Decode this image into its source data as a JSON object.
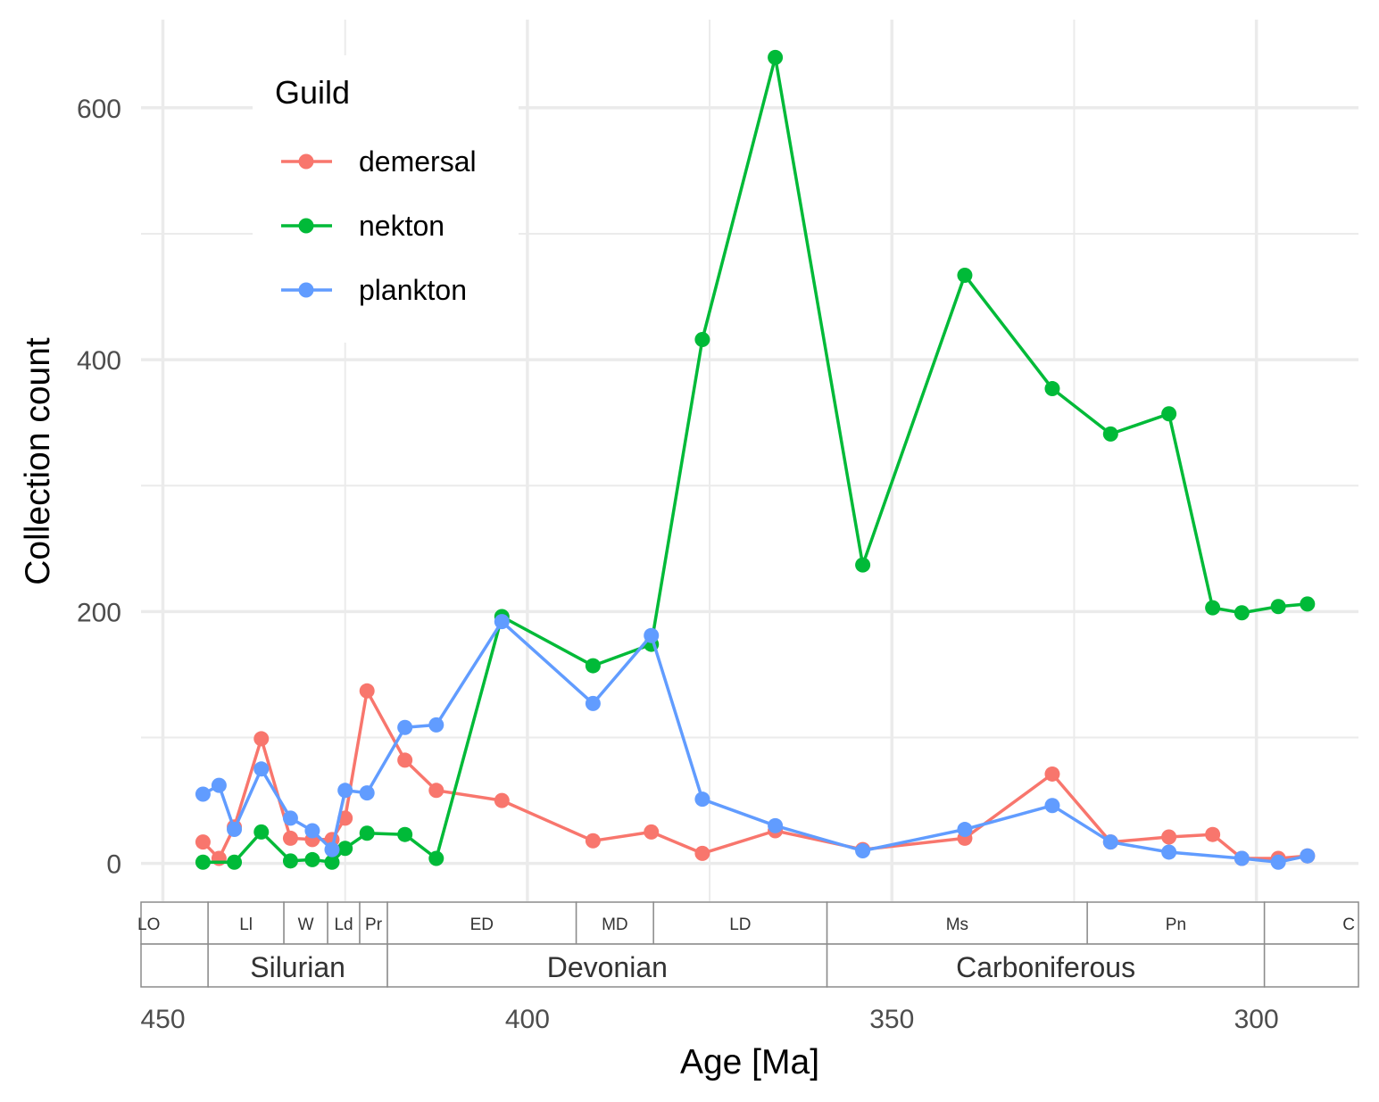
{
  "chart_data": {
    "type": "line",
    "xlabel": "Age [Ma]",
    "ylabel": "Collection count",
    "xlim": [
      453,
      286
    ],
    "ylim": [
      -30,
      670
    ],
    "x_reversed": true,
    "x_ticks": [
      450,
      400,
      350,
      300
    ],
    "y_ticks": [
      0,
      200,
      400,
      600
    ],
    "grid": true,
    "legend": {
      "title": "Guild",
      "placement": "top-left",
      "entries": [
        "demersal",
        "nekton",
        "plankton"
      ]
    },
    "colors": {
      "demersal": "#F8766D",
      "nekton": "#00BA38",
      "plankton": "#619CFF"
    },
    "series": [
      {
        "name": "demersal",
        "points": [
          [
            444.5,
            17
          ],
          [
            442.3,
            4
          ],
          [
            440.2,
            29
          ],
          [
            436.5,
            99
          ],
          [
            432.5,
            20
          ],
          [
            429.5,
            19
          ],
          [
            426.8,
            19
          ],
          [
            425.0,
            36
          ],
          [
            422.0,
            137
          ],
          [
            416.8,
            82
          ],
          [
            412.5,
            58
          ],
          [
            403.5,
            50
          ],
          [
            391,
            18
          ],
          [
            383,
            25
          ],
          [
            376,
            8
          ],
          [
            366,
            26
          ],
          [
            354,
            11
          ],
          [
            340,
            20
          ],
          [
            328,
            71
          ],
          [
            320,
            17
          ],
          [
            312,
            21
          ],
          [
            306,
            23
          ],
          [
            302,
            4
          ],
          [
            297,
            4
          ],
          [
            293,
            6
          ]
        ]
      },
      {
        "name": "nekton",
        "points": [
          [
            444.5,
            1
          ],
          [
            440.2,
            1
          ],
          [
            436.5,
            25
          ],
          [
            432.5,
            2
          ],
          [
            429.5,
            3
          ],
          [
            426.8,
            1
          ],
          [
            425.0,
            12
          ],
          [
            422.0,
            24
          ],
          [
            416.8,
            23
          ],
          [
            412.5,
            4
          ],
          [
            403.5,
            196
          ],
          [
            391,
            157
          ],
          [
            383,
            174
          ],
          [
            376,
            416
          ],
          [
            366,
            640
          ],
          [
            354,
            237
          ],
          [
            340,
            467
          ],
          [
            328,
            377
          ],
          [
            320,
            341
          ],
          [
            312,
            357
          ],
          [
            306,
            203
          ],
          [
            302,
            199
          ],
          [
            297,
            204
          ],
          [
            293,
            206
          ]
        ]
      },
      {
        "name": "plankton",
        "points": [
          [
            444.5,
            55
          ],
          [
            442.3,
            62
          ],
          [
            440.2,
            27
          ],
          [
            436.5,
            75
          ],
          [
            432.5,
            36
          ],
          [
            429.5,
            26
          ],
          [
            426.8,
            11
          ],
          [
            425.0,
            58
          ],
          [
            422.0,
            56
          ],
          [
            416.8,
            108
          ],
          [
            412.5,
            110
          ],
          [
            403.5,
            192
          ],
          [
            391,
            127
          ],
          [
            383,
            181
          ],
          [
            376,
            51
          ],
          [
            366,
            30
          ],
          [
            354,
            10
          ],
          [
            340,
            27
          ],
          [
            328,
            46
          ],
          [
            320,
            17
          ],
          [
            312,
            9
          ],
          [
            302,
            4
          ],
          [
            297,
            1
          ],
          [
            293,
            6
          ]
        ]
      }
    ],
    "time_scale": {
      "epochs": [
        {
          "label": "LO",
          "from": 453,
          "to": 443.8
        },
        {
          "label": "Ll",
          "from": 443.8,
          "to": 433.4
        },
        {
          "label": "W",
          "from": 433.4,
          "to": 427.4
        },
        {
          "label": "Ld",
          "from": 427.4,
          "to": 423.0
        },
        {
          "label": "Pr",
          "from": 423.0,
          "to": 419.2
        },
        {
          "label": "ED",
          "from": 419.2,
          "to": 393.3
        },
        {
          "label": "MD",
          "from": 393.3,
          "to": 382.7
        },
        {
          "label": "LD",
          "from": 382.7,
          "to": 358.9
        },
        {
          "label": "Ms",
          "from": 358.9,
          "to": 323.2
        },
        {
          "label": "Pn",
          "from": 323.2,
          "to": 298.9
        },
        {
          "label": "C",
          "from": 298.9,
          "to": 286
        }
      ],
      "periods": [
        {
          "label": "",
          "from": 453,
          "to": 443.8
        },
        {
          "label": "Silurian",
          "from": 443.8,
          "to": 419.2
        },
        {
          "label": "Devonian",
          "from": 419.2,
          "to": 358.9
        },
        {
          "label": "Carboniferous",
          "from": 358.9,
          "to": 298.9
        },
        {
          "label": "",
          "from": 298.9,
          "to": 286
        }
      ]
    }
  }
}
